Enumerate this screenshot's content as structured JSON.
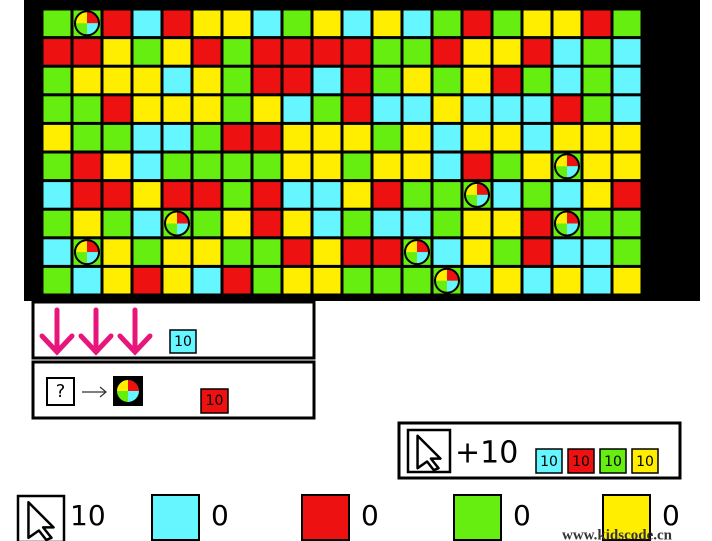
{
  "board": {
    "rows": [
      "GBRCRYYCGYCYCGRGYYRG",
      "RRYGYRGRRRRGGRYYRCGC",
      "GYYYCYGRRCRGYGYRGCGC",
      "GGRYYYGYCGRCCYCCCRGC",
      "YGGCCGRRYYYGYCYYCYYY",
      "GRYCGGGGYYGYYCRGYBYY",
      "CRRYRRGRCCYRGGBCGCYR",
      "GYGCBGYRYCGCCGYYRBGG",
      "CBYGYYGGRYRRBCYGRCCG",
      "GCYRYCRGYYGGGBCYCYCY"
    ],
    "colors": {
      "C": "#66f6ff",
      "R": "#ee1111",
      "Y": "#ffee00",
      "G": "#66ee11"
    }
  },
  "gravity_panel": {
    "badge": "10"
  },
  "mystery_panel": {
    "question": "?",
    "badge": "10"
  },
  "click_panel": {
    "bonus": "+10",
    "badges": [
      "10",
      "10",
      "10",
      "10"
    ]
  },
  "score_bar": {
    "clicks": "10",
    "counts": [
      "0",
      "0",
      "0",
      "0"
    ]
  },
  "watermark": "www.kidscode.cn"
}
